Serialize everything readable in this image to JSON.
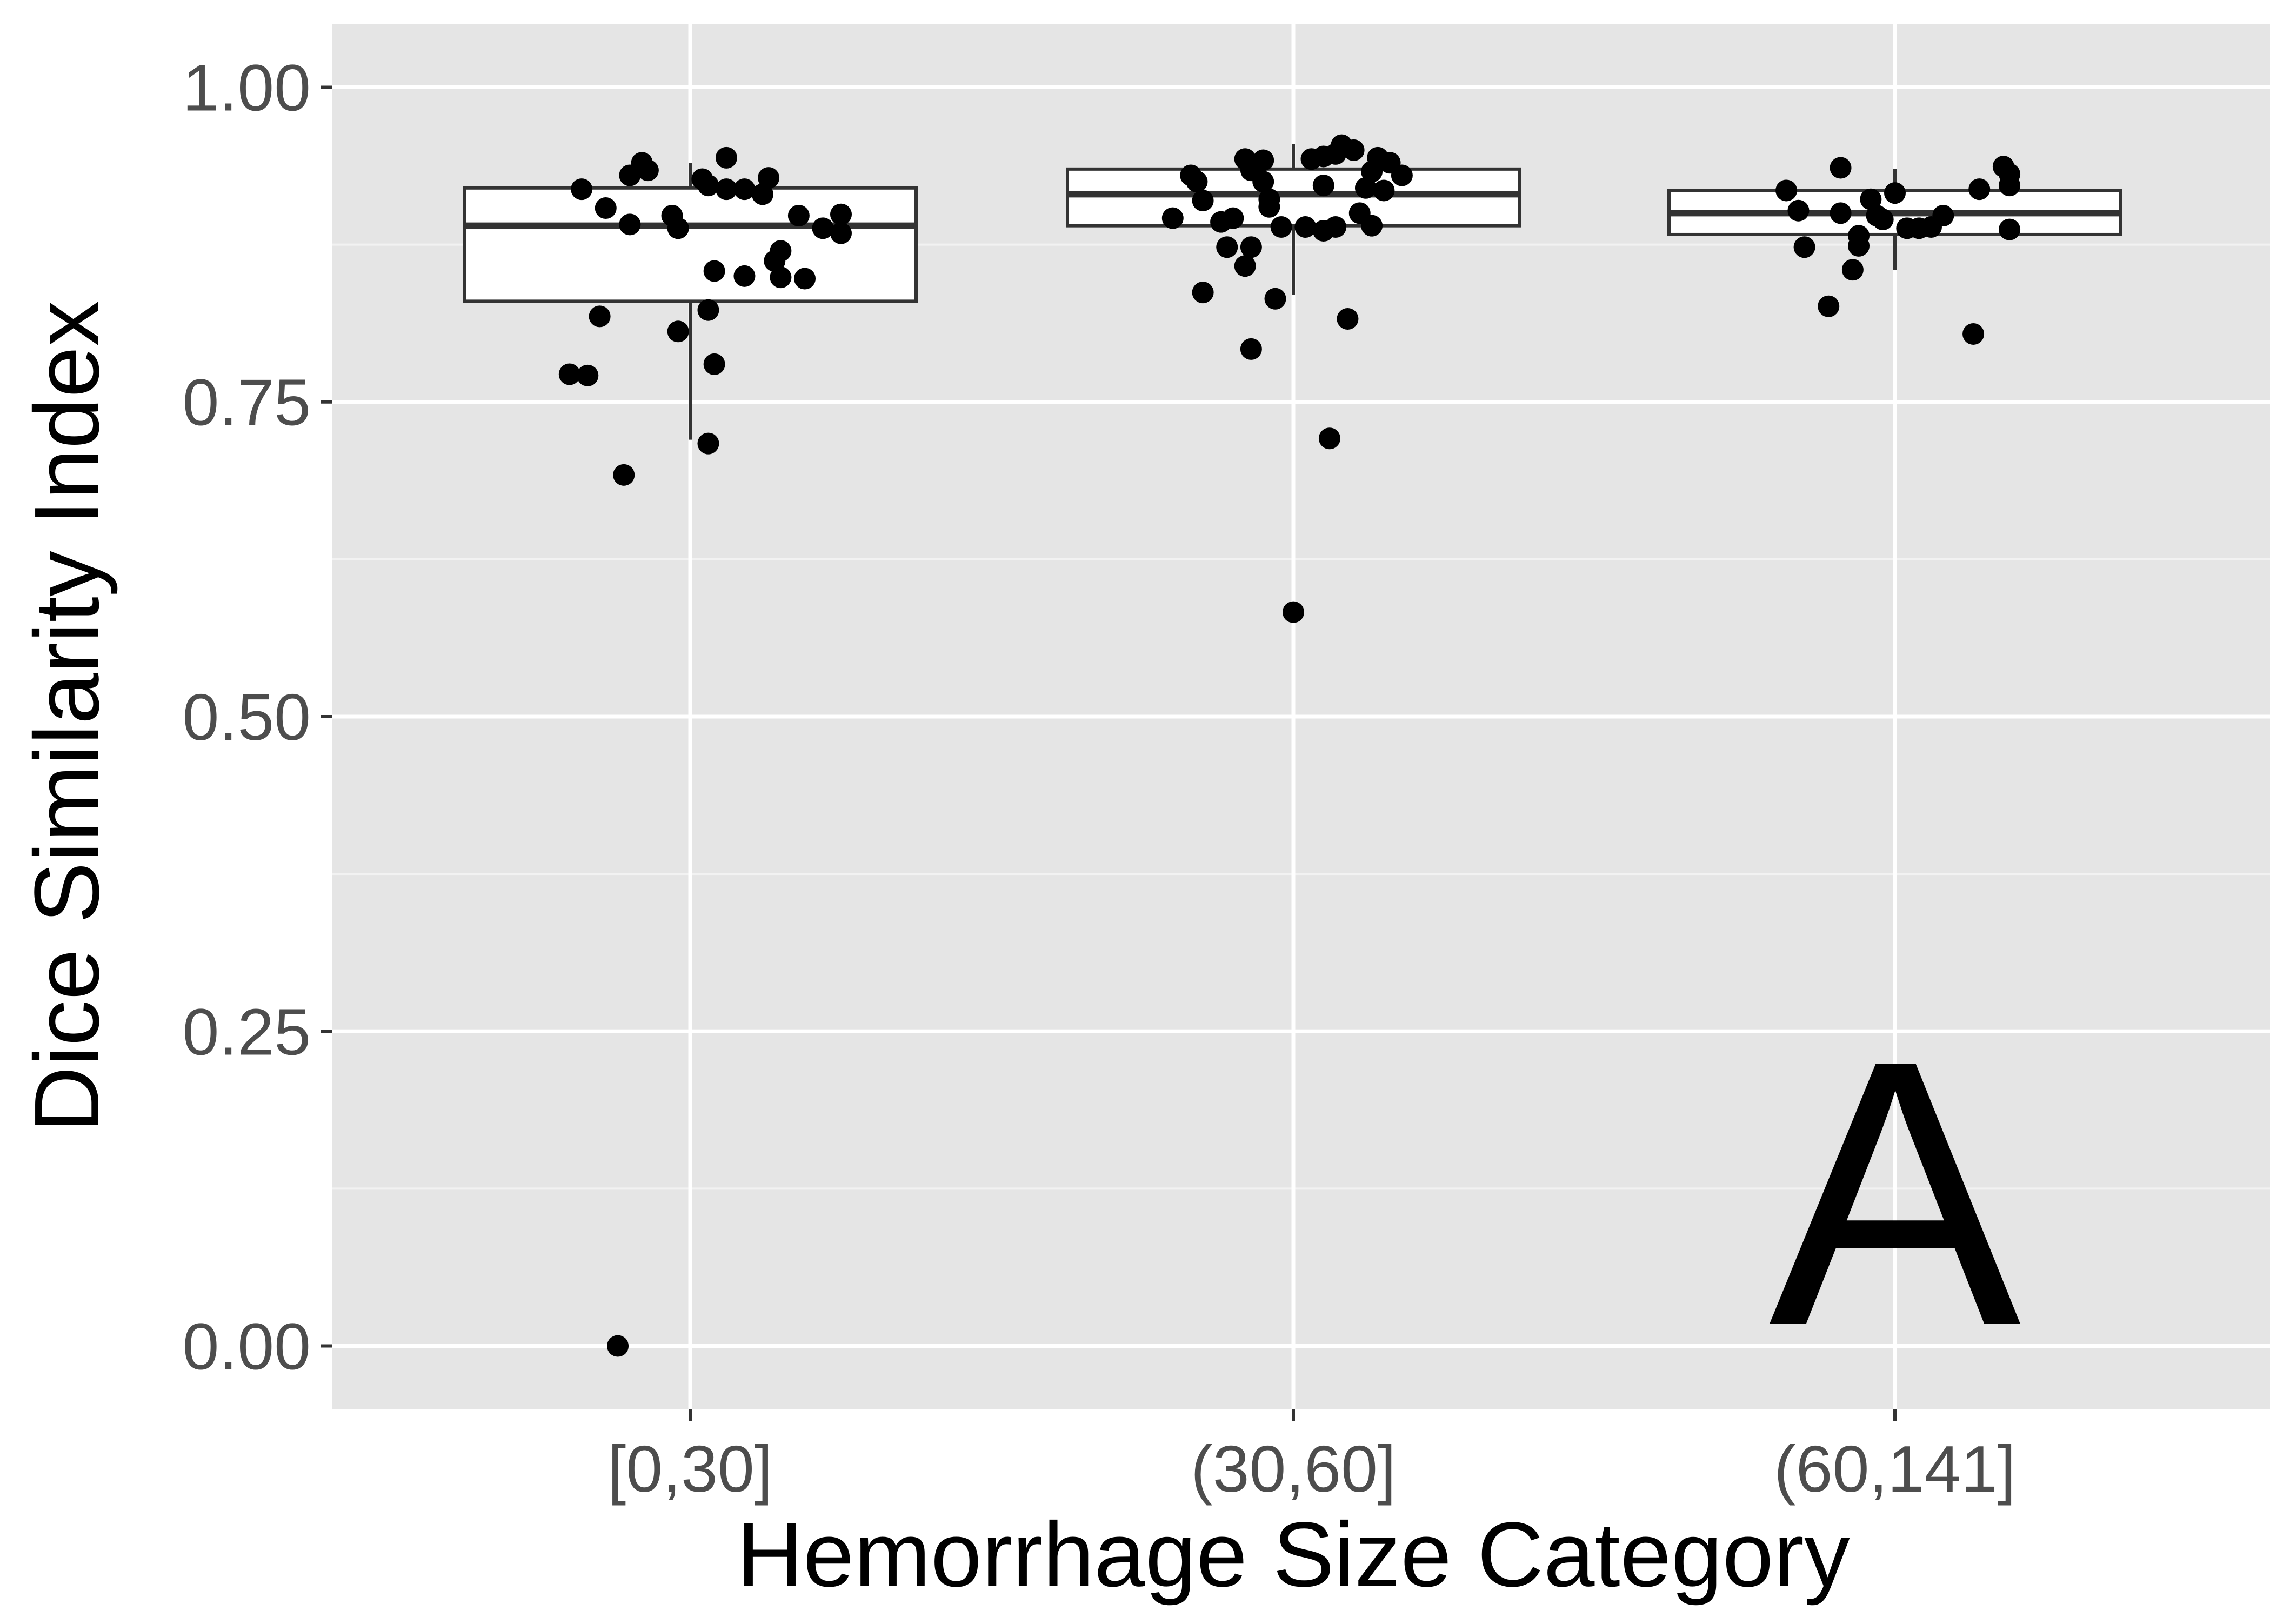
{
  "chart_data": {
    "type": "box",
    "title": "",
    "xlabel": "Hemorrhage Size Category",
    "ylabel": "Dice Similarity Index",
    "ylim": [
      -0.05,
      1.05
    ],
    "yticks": [
      0.0,
      0.25,
      0.5,
      0.75,
      1.0
    ],
    "ytick_labels": [
      "0.00",
      "0.25",
      "0.50",
      "0.75",
      "1.00"
    ],
    "categories": [
      "[0,30]",
      "(30,60]",
      "(60,141]"
    ],
    "annotation": "A",
    "grid": true,
    "legend": "none",
    "colors": {
      "panel_bg": "#e5e5e5",
      "grid_major": "#ffffff",
      "grid_minor": "#f2f2f2",
      "box_fill": "#ffffff",
      "box_stroke": "#333333",
      "points": "#000000"
    },
    "boxes": [
      {
        "category": "[0,30]",
        "min": 0.72,
        "q1": 0.83,
        "median": 0.89,
        "q3": 0.92,
        "max": 0.94
      },
      {
        "category": "(30,60]",
        "min": 0.835,
        "q1": 0.89,
        "median": 0.915,
        "q3": 0.935,
        "max": 0.955
      },
      {
        "category": "(60,141]",
        "min": 0.855,
        "q1": 0.883,
        "median": 0.9,
        "q3": 0.918,
        "max": 0.935
      }
    ],
    "points": [
      [
        [
          -0.18,
          0.919
        ],
        [
          -0.14,
          0.904
        ],
        [
          -0.1,
          0.93
        ],
        [
          -0.08,
          0.94
        ],
        [
          -0.07,
          0.934
        ],
        [
          -0.03,
          0.898
        ],
        [
          -0.1,
          0.891
        ],
        [
          -0.02,
          0.888
        ],
        [
          0.02,
          0.927
        ],
        [
          0.03,
          0.922
        ],
        [
          0.06,
          0.944
        ],
        [
          0.09,
          0.919
        ],
        [
          0.12,
          0.915
        ],
        [
          0.13,
          0.928
        ],
        [
          0.18,
          0.898
        ],
        [
          0.22,
          0.888
        ],
        [
          0.25,
          0.899
        ],
        [
          0.06,
          0.919
        ],
        [
          0.04,
          0.854
        ],
        [
          0.09,
          0.85
        ],
        [
          0.14,
          0.862
        ],
        [
          0.15,
          0.849
        ],
        [
          0.19,
          0.848
        ],
        [
          0.15,
          0.87
        ],
        [
          0.25,
          0.884
        ],
        [
          -0.15,
          0.818
        ],
        [
          -0.02,
          0.806
        ],
        [
          0.03,
          0.823
        ],
        [
          0.04,
          0.78
        ],
        [
          -0.2,
          0.772
        ],
        [
          -0.17,
          0.771
        ],
        [
          0.03,
          0.717
        ],
        [
          -0.11,
          0.692
        ],
        [
          -0.12,
          0.0
        ]
      ],
      [
        [
          -0.2,
          0.896
        ],
        [
          -0.17,
          0.93
        ],
        [
          -0.16,
          0.925
        ],
        [
          -0.15,
          0.91
        ],
        [
          -0.12,
          0.893
        ],
        [
          -0.1,
          0.896
        ],
        [
          -0.08,
          0.943
        ],
        [
          -0.07,
          0.934
        ],
        [
          -0.05,
          0.942
        ],
        [
          -0.05,
          0.925
        ],
        [
          -0.04,
          0.911
        ],
        [
          -0.04,
          0.905
        ],
        [
          -0.02,
          0.889
        ],
        [
          0.03,
          0.943
        ],
        [
          0.05,
          0.945
        ],
        [
          0.07,
          0.947
        ],
        [
          0.08,
          0.954
        ],
        [
          0.1,
          0.95
        ],
        [
          0.13,
          0.933
        ],
        [
          0.14,
          0.944
        ],
        [
          0.16,
          0.94
        ],
        [
          0.18,
          0.93
        ],
        [
          0.15,
          0.918
        ],
        [
          0.12,
          0.92
        ],
        [
          0.05,
          0.922
        ],
        [
          0.02,
          0.889
        ],
        [
          0.05,
          0.886
        ],
        [
          0.07,
          0.889
        ],
        [
          0.11,
          0.9
        ],
        [
          0.13,
          0.89
        ],
        [
          -0.11,
          0.873
        ],
        [
          -0.08,
          0.858
        ],
        [
          -0.07,
          0.873
        ],
        [
          -0.15,
          0.837
        ],
        [
          -0.03,
          0.832
        ],
        [
          0.09,
          0.816
        ],
        [
          -0.07,
          0.792
        ],
        [
          0.06,
          0.721
        ],
        [
          0.0,
          0.583
        ]
      ],
      [
        [
          -0.18,
          0.918
        ],
        [
          -0.16,
          0.902
        ],
        [
          -0.15,
          0.873
        ],
        [
          -0.09,
          0.936
        ],
        [
          -0.09,
          0.9
        ],
        [
          -0.07,
          0.855
        ],
        [
          -0.06,
          0.882
        ],
        [
          -0.06,
          0.874
        ],
        [
          -0.04,
          0.911
        ],
        [
          -0.03,
          0.898
        ],
        [
          -0.02,
          0.895
        ],
        [
          0.0,
          0.916
        ],
        [
          0.02,
          0.888
        ],
        [
          0.04,
          0.888
        ],
        [
          0.06,
          0.889
        ],
        [
          0.08,
          0.898
        ],
        [
          0.14,
          0.919
        ],
        [
          0.18,
          0.937
        ],
        [
          0.19,
          0.922
        ],
        [
          0.19,
          0.931
        ],
        [
          0.19,
          0.887
        ],
        [
          -0.11,
          0.826
        ],
        [
          0.13,
          0.804
        ]
      ]
    ]
  }
}
